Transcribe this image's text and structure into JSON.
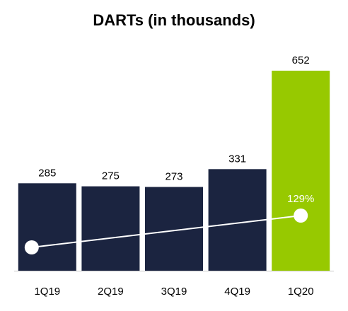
{
  "chart_data": {
    "type": "bar",
    "title": "DARTs (in thousands)",
    "xlabel": "",
    "ylabel": "",
    "categories": [
      "1Q19",
      "2Q19",
      "3Q19",
      "4Q19",
      "1Q20"
    ],
    "values": [
      285,
      275,
      273,
      331,
      652
    ],
    "data_labels": [
      "285",
      "275",
      "273",
      "331",
      "652"
    ],
    "bar_colors": [
      "#1b2440",
      "#1b2440",
      "#1b2440",
      "#1b2440",
      "#97c900"
    ],
    "ylim": [
      0,
      652
    ],
    "grid": false,
    "legend": "none",
    "overlay": {
      "type": "line",
      "from_category": "1Q19",
      "to_category": "1Q20",
      "label": "129%",
      "color": "#ffffff"
    }
  },
  "colors": {
    "text": "#000000",
    "highlight_label": "#ffffff",
    "axis": "#c8c8c8"
  }
}
